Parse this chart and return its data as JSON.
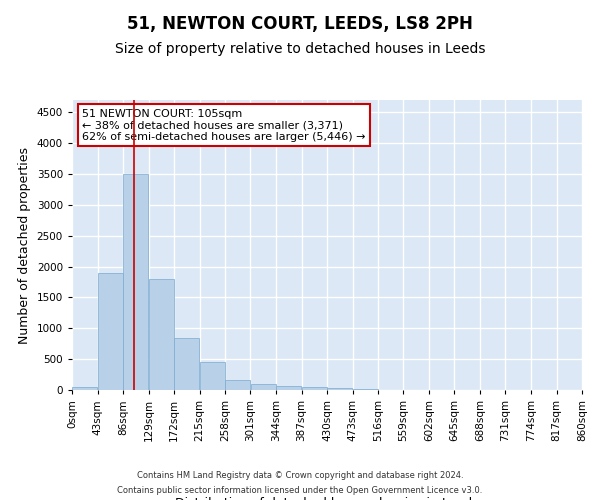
{
  "title": "51, NEWTON COURT, LEEDS, LS8 2PH",
  "subtitle": "Size of property relative to detached houses in Leeds",
  "xlabel": "Distribution of detached houses by size in Leeds",
  "ylabel": "Number of detached properties",
  "bar_color": "#b8d0e8",
  "bar_edge_color": "#7aaad0",
  "background_color": "#dce8f5",
  "grid_color": "#ffffff",
  "annotation_line_color": "#cc0000",
  "annotation_property_sqm": 105,
  "annotation_text_line1": "51 NEWTON COURT: 105sqm",
  "annotation_text_line2": "← 38% of detached houses are smaller (3,371)",
  "annotation_text_line3": "62% of semi-detached houses are larger (5,446) →",
  "footer_line1": "Contains HM Land Registry data © Crown copyright and database right 2024.",
  "footer_line2": "Contains public sector information licensed under the Open Government Licence v3.0.",
  "bin_edges": [
    0,
    43,
    86,
    129,
    172,
    215,
    258,
    301,
    344,
    387,
    430,
    473,
    516,
    559,
    602,
    645,
    688,
    731,
    774,
    817,
    860
  ],
  "bar_heights": [
    50,
    1900,
    3500,
    1800,
    850,
    450,
    160,
    100,
    70,
    50,
    30,
    15,
    8,
    5,
    3,
    2,
    1,
    1,
    1,
    0
  ],
  "ylim": [
    0,
    4700
  ],
  "yticks": [
    0,
    500,
    1000,
    1500,
    2000,
    2500,
    3000,
    3500,
    4000,
    4500
  ],
  "title_fontsize": 12,
  "subtitle_fontsize": 10,
  "axis_label_fontsize": 9,
  "tick_fontsize": 7.5,
  "annotation_fontsize": 8,
  "footer_fontsize": 6
}
